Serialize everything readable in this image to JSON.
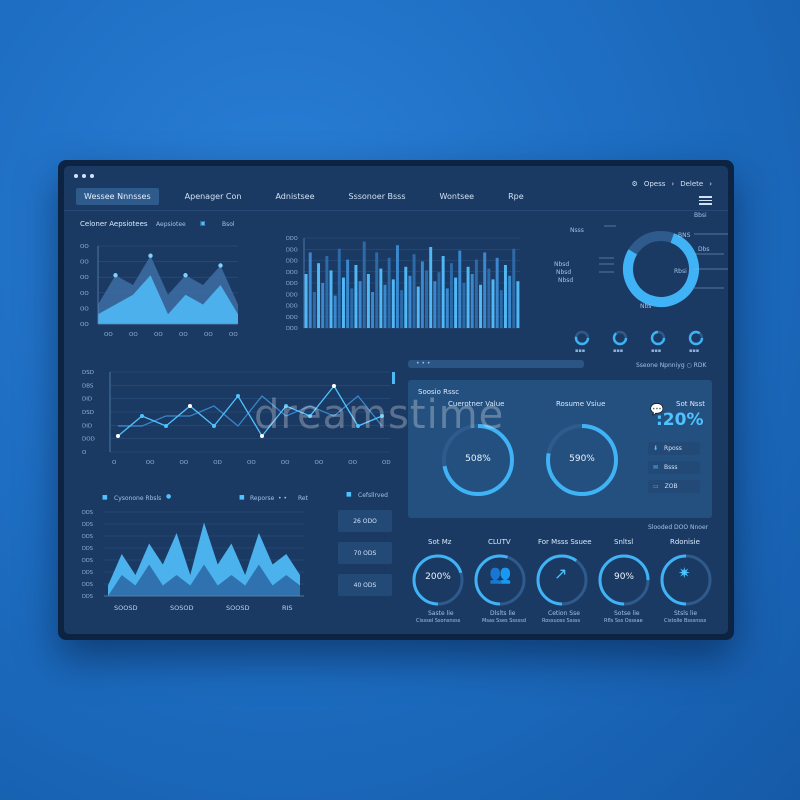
{
  "window": {
    "controls": [
      "•",
      "•",
      "•"
    ]
  },
  "nav": {
    "tabs": [
      {
        "label": "Wessee Nnnsses"
      },
      {
        "label": "Apenager Con"
      },
      {
        "label": "Adnistsee"
      },
      {
        "label": "Sssonoer Bsss"
      },
      {
        "label": "Wontsee"
      },
      {
        "label": "Rpe"
      }
    ],
    "top_right": {
      "item1": "Opess",
      "arrow": "›",
      "item2": "Delete",
      "arrow2": "›"
    }
  },
  "panel_area": {
    "title": "Celoner Aepsiotees",
    "sub": "Aepsiotee",
    "tag": "Bsol"
  },
  "panel_bars": {},
  "panel_donut": {
    "labels_left": [
      "Nsss",
      "Nbsd",
      "Nbsd",
      "Nbsd"
    ],
    "labels_right": [
      "Bbsi",
      "BNS",
      "Dbs",
      "Rbsi"
    ],
    "small_label": "Nbs"
  },
  "panel_line": {
    "yticks": [
      "DSD",
      "DBS",
      "DID",
      "DSD",
      "DID",
      "DOD",
      "O"
    ],
    "xticks": [
      "O",
      "OO",
      "OO",
      "OD",
      "OO",
      "OO",
      "OO",
      "OO",
      "OD"
    ]
  },
  "panel_bottom_area": {
    "legend1": "Cysonone Rbsls",
    "legend2": "Reporse",
    "legend3": "Ret",
    "legend4": "Cefsllrved",
    "xticks": [
      "SOOSD",
      "SOSOD",
      "SOOSD",
      "RIS"
    ],
    "mini_values": [
      "26 ODO",
      "70 ODS",
      "40 ODS"
    ]
  },
  "kpi": {
    "header_right": "Sseone Npnniyg  ○  RDK",
    "panel_title": "Soosio Rssc",
    "g1_title": "Cuerotner Value",
    "g1_value": "508%",
    "g2_title": "Rosume Vsiue",
    "g2_value": "590%",
    "side_title": "Sot Nsst",
    "side_value": ":20%",
    "side_buttons": [
      "Rposs",
      "Bsss",
      "ZOB"
    ]
  },
  "bottom_kpis": {
    "header": "Slooded DOO Nnoer",
    "items": [
      {
        "title": "Sot Mz",
        "value": "200%",
        "sub1": "Saste lie",
        "sub2": "Cisssel Ssonsnsss"
      },
      {
        "title": "CLUTV",
        "value": "",
        "sub1": "Dlslts lie",
        "sub2": "Msas Sses Sssssd"
      },
      {
        "title": "For Msss Ssuee",
        "value": "",
        "sub1": "Cetion Sse",
        "sub2": "Rossuoss Sssss"
      },
      {
        "title": "Snltsl",
        "value": "90%",
        "sub1": "Sotse lie",
        "sub2": "Rfls Sss Osssae"
      },
      {
        "title": "Rdonisie",
        "value": "",
        "sub1": "Stsls lie",
        "sub2": "Cistolle Bsssnsss"
      }
    ]
  },
  "watermark": "dreamstime",
  "chart_data": [
    {
      "type": "area",
      "series": [
        {
          "values": [
            2,
            5,
            4,
            7,
            3,
            5,
            4,
            6,
            2
          ]
        },
        {
          "values": [
            1,
            2,
            3,
            5,
            1,
            3,
            2,
            4,
            1
          ]
        }
      ]
    },
    {
      "type": "bar",
      "values": [
        30,
        42,
        20,
        36,
        25,
        40,
        32,
        18,
        44,
        28,
        38,
        22,
        35,
        26,
        48,
        30,
        20,
        42,
        33,
        24,
        39,
        27,
        46,
        21,
        34,
        29,
        41,
        23,
        37,
        32,
        45,
        26,
        31,
        40,
        22,
        36,
        28,
        43,
        25,
        34,
        30,
        38,
        24,
        42,
        33,
        27,
        39,
        21,
        35,
        29,
        44,
        26
      ]
    },
    {
      "type": "pie",
      "values": [
        78,
        22
      ]
    },
    {
      "type": "line",
      "series": [
        {
          "values": [
            1,
            3,
            2,
            4,
            2,
            5,
            1,
            4,
            3,
            6,
            2,
            3
          ]
        },
        {
          "values": [
            2,
            2,
            3,
            3,
            4,
            2,
            5,
            3,
            4,
            3,
            5,
            2
          ]
        }
      ]
    },
    {
      "type": "area",
      "series": [
        {
          "values": [
            1,
            4,
            2,
            5,
            3,
            6,
            2,
            7,
            3,
            5,
            2,
            6,
            3,
            4,
            2
          ]
        },
        {
          "values": [
            0,
            2,
            1,
            3,
            1,
            2,
            1,
            3,
            1,
            2,
            1,
            3,
            1,
            2,
            1
          ]
        }
      ]
    }
  ]
}
